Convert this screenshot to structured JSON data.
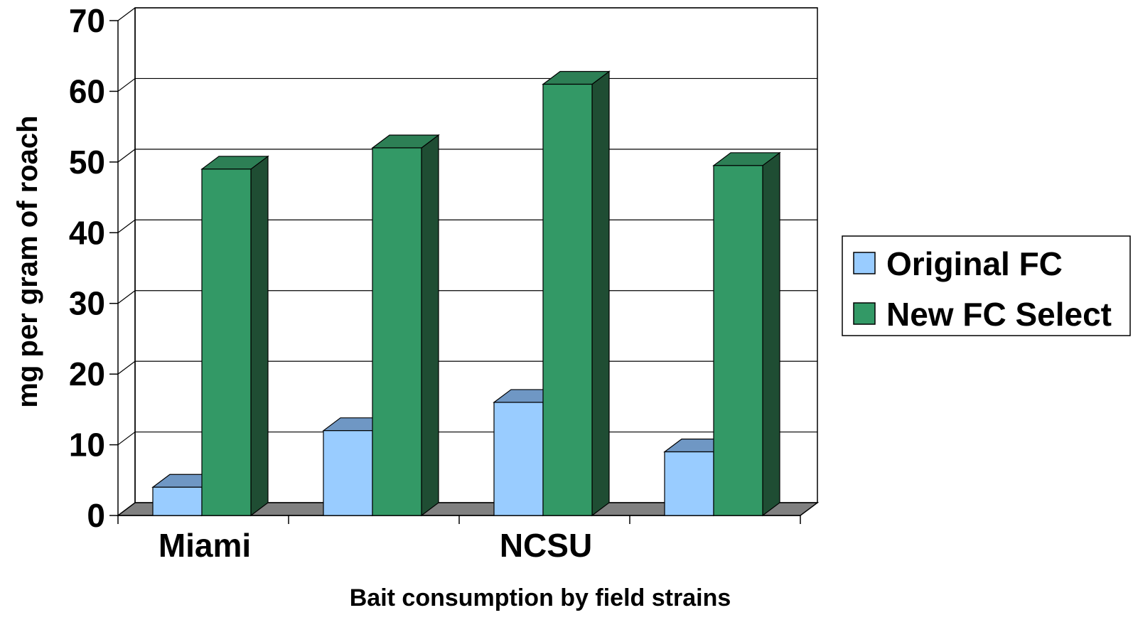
{
  "chart_data": {
    "type": "bar",
    "categories": [
      "Miami",
      "",
      "NCSU",
      ""
    ],
    "series": [
      {
        "name": "Original FC",
        "values": [
          4,
          12,
          16,
          9
        ],
        "color": "#99ccff",
        "top_color": "#6f97c4"
      },
      {
        "name": "New FC Select",
        "values": [
          49,
          52,
          61,
          49.5
        ],
        "color": "#339966",
        "side_color": "#1f4d33",
        "top_color": "#2d7f55"
      }
    ],
    "xlabel": "Bait consumption by field strains",
    "ylabel": "mg per gram of roach",
    "ylim": [
      0,
      70
    ],
    "yticks": [
      "0",
      "10",
      "20",
      "30",
      "40",
      "50",
      "60",
      "70"
    ],
    "grid": true,
    "legend_position": "right",
    "floor_color": "#808080"
  }
}
